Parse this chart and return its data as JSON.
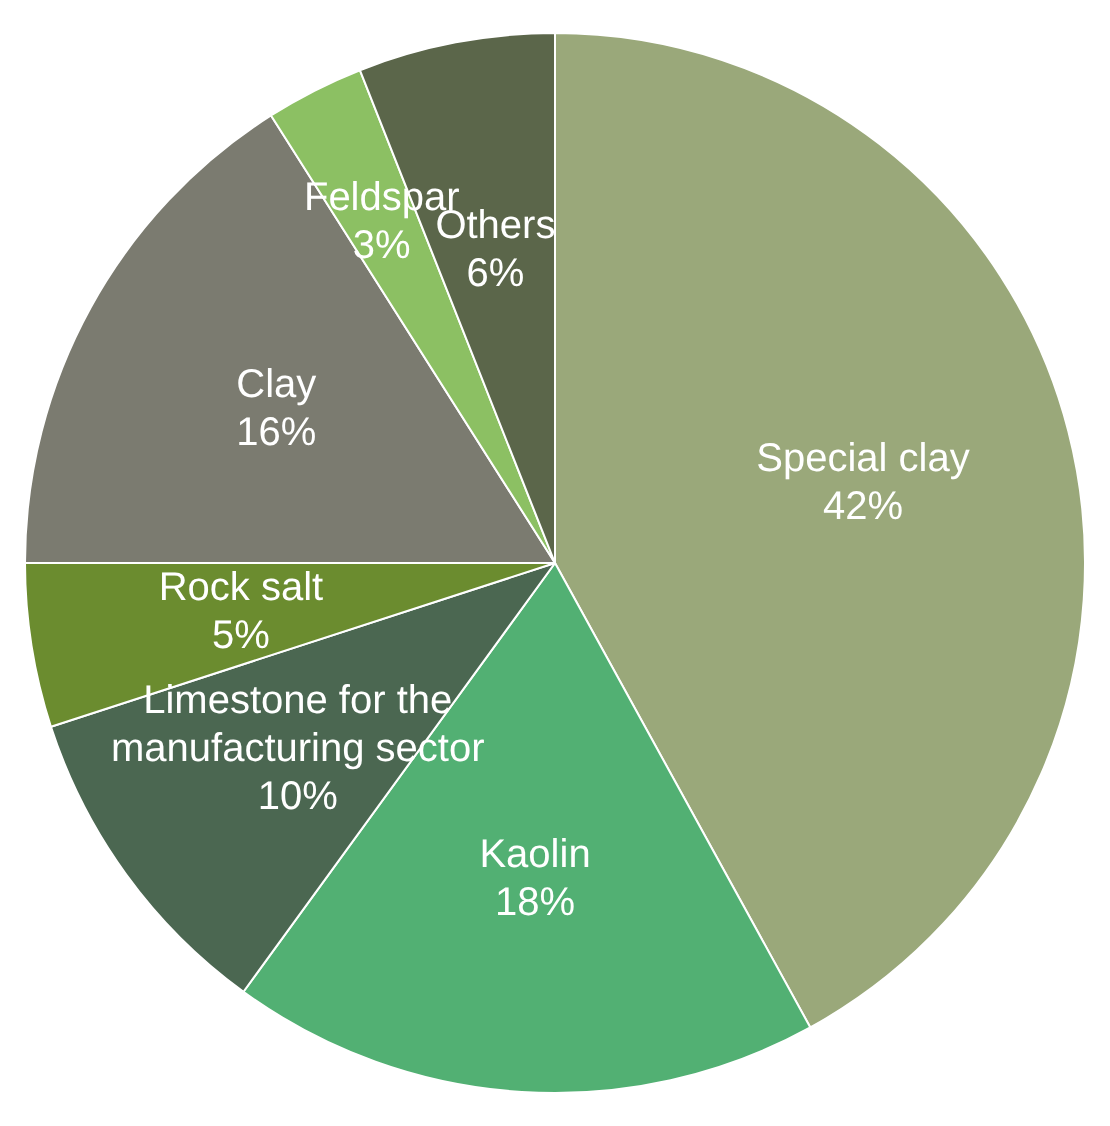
{
  "chart_data": {
    "type": "pie",
    "categories": [
      "Special clay",
      "Kaolin",
      "Limestone for the manufacturing sector",
      "Rock salt",
      "Clay",
      "Feldspar",
      "Others"
    ],
    "values": [
      42,
      18,
      10,
      5,
      16,
      3,
      6
    ],
    "colors": [
      "#9aa87a",
      "#52b073",
      "#4b6751",
      "#6b8c2f",
      "#7b7b70",
      "#8cc063",
      "#5b664a"
    ],
    "value_labels": [
      "42%",
      "18%",
      "10%",
      "5%",
      "16%",
      "3%",
      "6%"
    ],
    "legend": false
  }
}
